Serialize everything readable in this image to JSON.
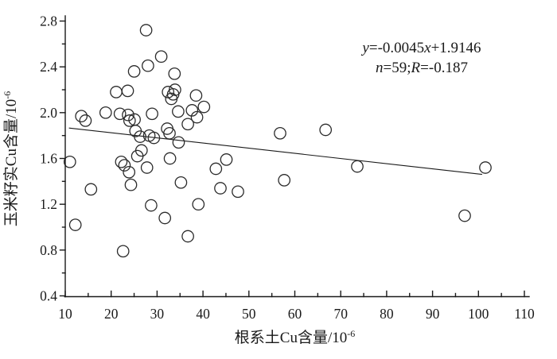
{
  "figure": {
    "background": "#ffffff",
    "ink_color": "#1a1a1a",
    "marker_color": "#2b2b2b",
    "annotation": {
      "line1": "y=-0.0045x+1.9146",
      "line2": "n=59;R=-0.187"
    }
  },
  "chart_data": {
    "type": "scatter",
    "title": "",
    "xlabel": "根系土Cu含量/10",
    "xlabel_superscript": "-6",
    "ylabel": "玉米籽实Cu含量/10",
    "ylabel_superscript": "-6",
    "xlim": [
      10,
      110
    ],
    "ylim": [
      0.4,
      2.8
    ],
    "x_ticks": [
      "10",
      "20",
      "30",
      "40",
      "50",
      "60",
      "70",
      "80",
      "90",
      "100",
      "110"
    ],
    "y_ticks": [
      "0.4",
      "0.8",
      "1.2",
      "1.6",
      "2.0",
      "2.4",
      "2.8"
    ],
    "x_minor_ticks": [
      15,
      25,
      35,
      45,
      55,
      65,
      75,
      85,
      95,
      105
    ],
    "y_minor_ticks": [
      0.6,
      1.0,
      1.4,
      1.8,
      2.2,
      2.6
    ],
    "grid": false,
    "legend": "none",
    "marker": "open-circle",
    "points": [
      [
        27.6,
        2.72
      ],
      [
        30.9,
        2.49
      ],
      [
        28.0,
        2.41
      ],
      [
        25.0,
        2.36
      ],
      [
        33.8,
        2.34
      ],
      [
        21.1,
        2.18
      ],
      [
        23.6,
        2.19
      ],
      [
        32.4,
        2.18
      ],
      [
        33.9,
        2.2
      ],
      [
        33.5,
        2.16
      ],
      [
        33.1,
        2.12
      ],
      [
        38.5,
        2.15
      ],
      [
        13.5,
        1.97
      ],
      [
        14.4,
        1.93
      ],
      [
        18.8,
        2.0
      ],
      [
        21.9,
        1.99
      ],
      [
        23.7,
        1.98
      ],
      [
        24.0,
        1.93
      ],
      [
        25.1,
        1.94
      ],
      [
        28.9,
        1.99
      ],
      [
        34.6,
        2.01
      ],
      [
        37.6,
        2.02
      ],
      [
        40.2,
        2.05
      ],
      [
        38.7,
        1.96
      ],
      [
        36.7,
        1.9
      ],
      [
        32.2,
        1.86
      ],
      [
        32.7,
        1.82
      ],
      [
        25.3,
        1.84
      ],
      [
        26.3,
        1.79
      ],
      [
        28.3,
        1.8
      ],
      [
        29.3,
        1.78
      ],
      [
        34.7,
        1.74
      ],
      [
        56.8,
        1.82
      ],
      [
        66.7,
        1.85
      ],
      [
        26.6,
        1.67
      ],
      [
        25.7,
        1.62
      ],
      [
        32.8,
        1.6
      ],
      [
        11.0,
        1.57
      ],
      [
        22.2,
        1.57
      ],
      [
        22.9,
        1.54
      ],
      [
        23.9,
        1.48
      ],
      [
        27.8,
        1.52
      ],
      [
        45.1,
        1.59
      ],
      [
        42.8,
        1.51
      ],
      [
        73.6,
        1.53
      ],
      [
        101.5,
        1.52
      ],
      [
        15.6,
        1.33
      ],
      [
        24.3,
        1.37
      ],
      [
        35.2,
        1.39
      ],
      [
        43.8,
        1.34
      ],
      [
        47.6,
        1.31
      ],
      [
        57.7,
        1.41
      ],
      [
        28.7,
        1.19
      ],
      [
        39.0,
        1.2
      ],
      [
        31.7,
        1.08
      ],
      [
        12.2,
        1.02
      ],
      [
        97.0,
        1.1
      ],
      [
        36.7,
        0.92
      ],
      [
        22.6,
        0.79
      ]
    ],
    "trend_line": {
      "slope": -0.0045,
      "intercept": 1.9146,
      "x_start": 10.8,
      "x_end": 100.8
    },
    "regression": {
      "equation": "y=-0.0045x+1.9146",
      "n": 59,
      "R": -0.187
    }
  }
}
